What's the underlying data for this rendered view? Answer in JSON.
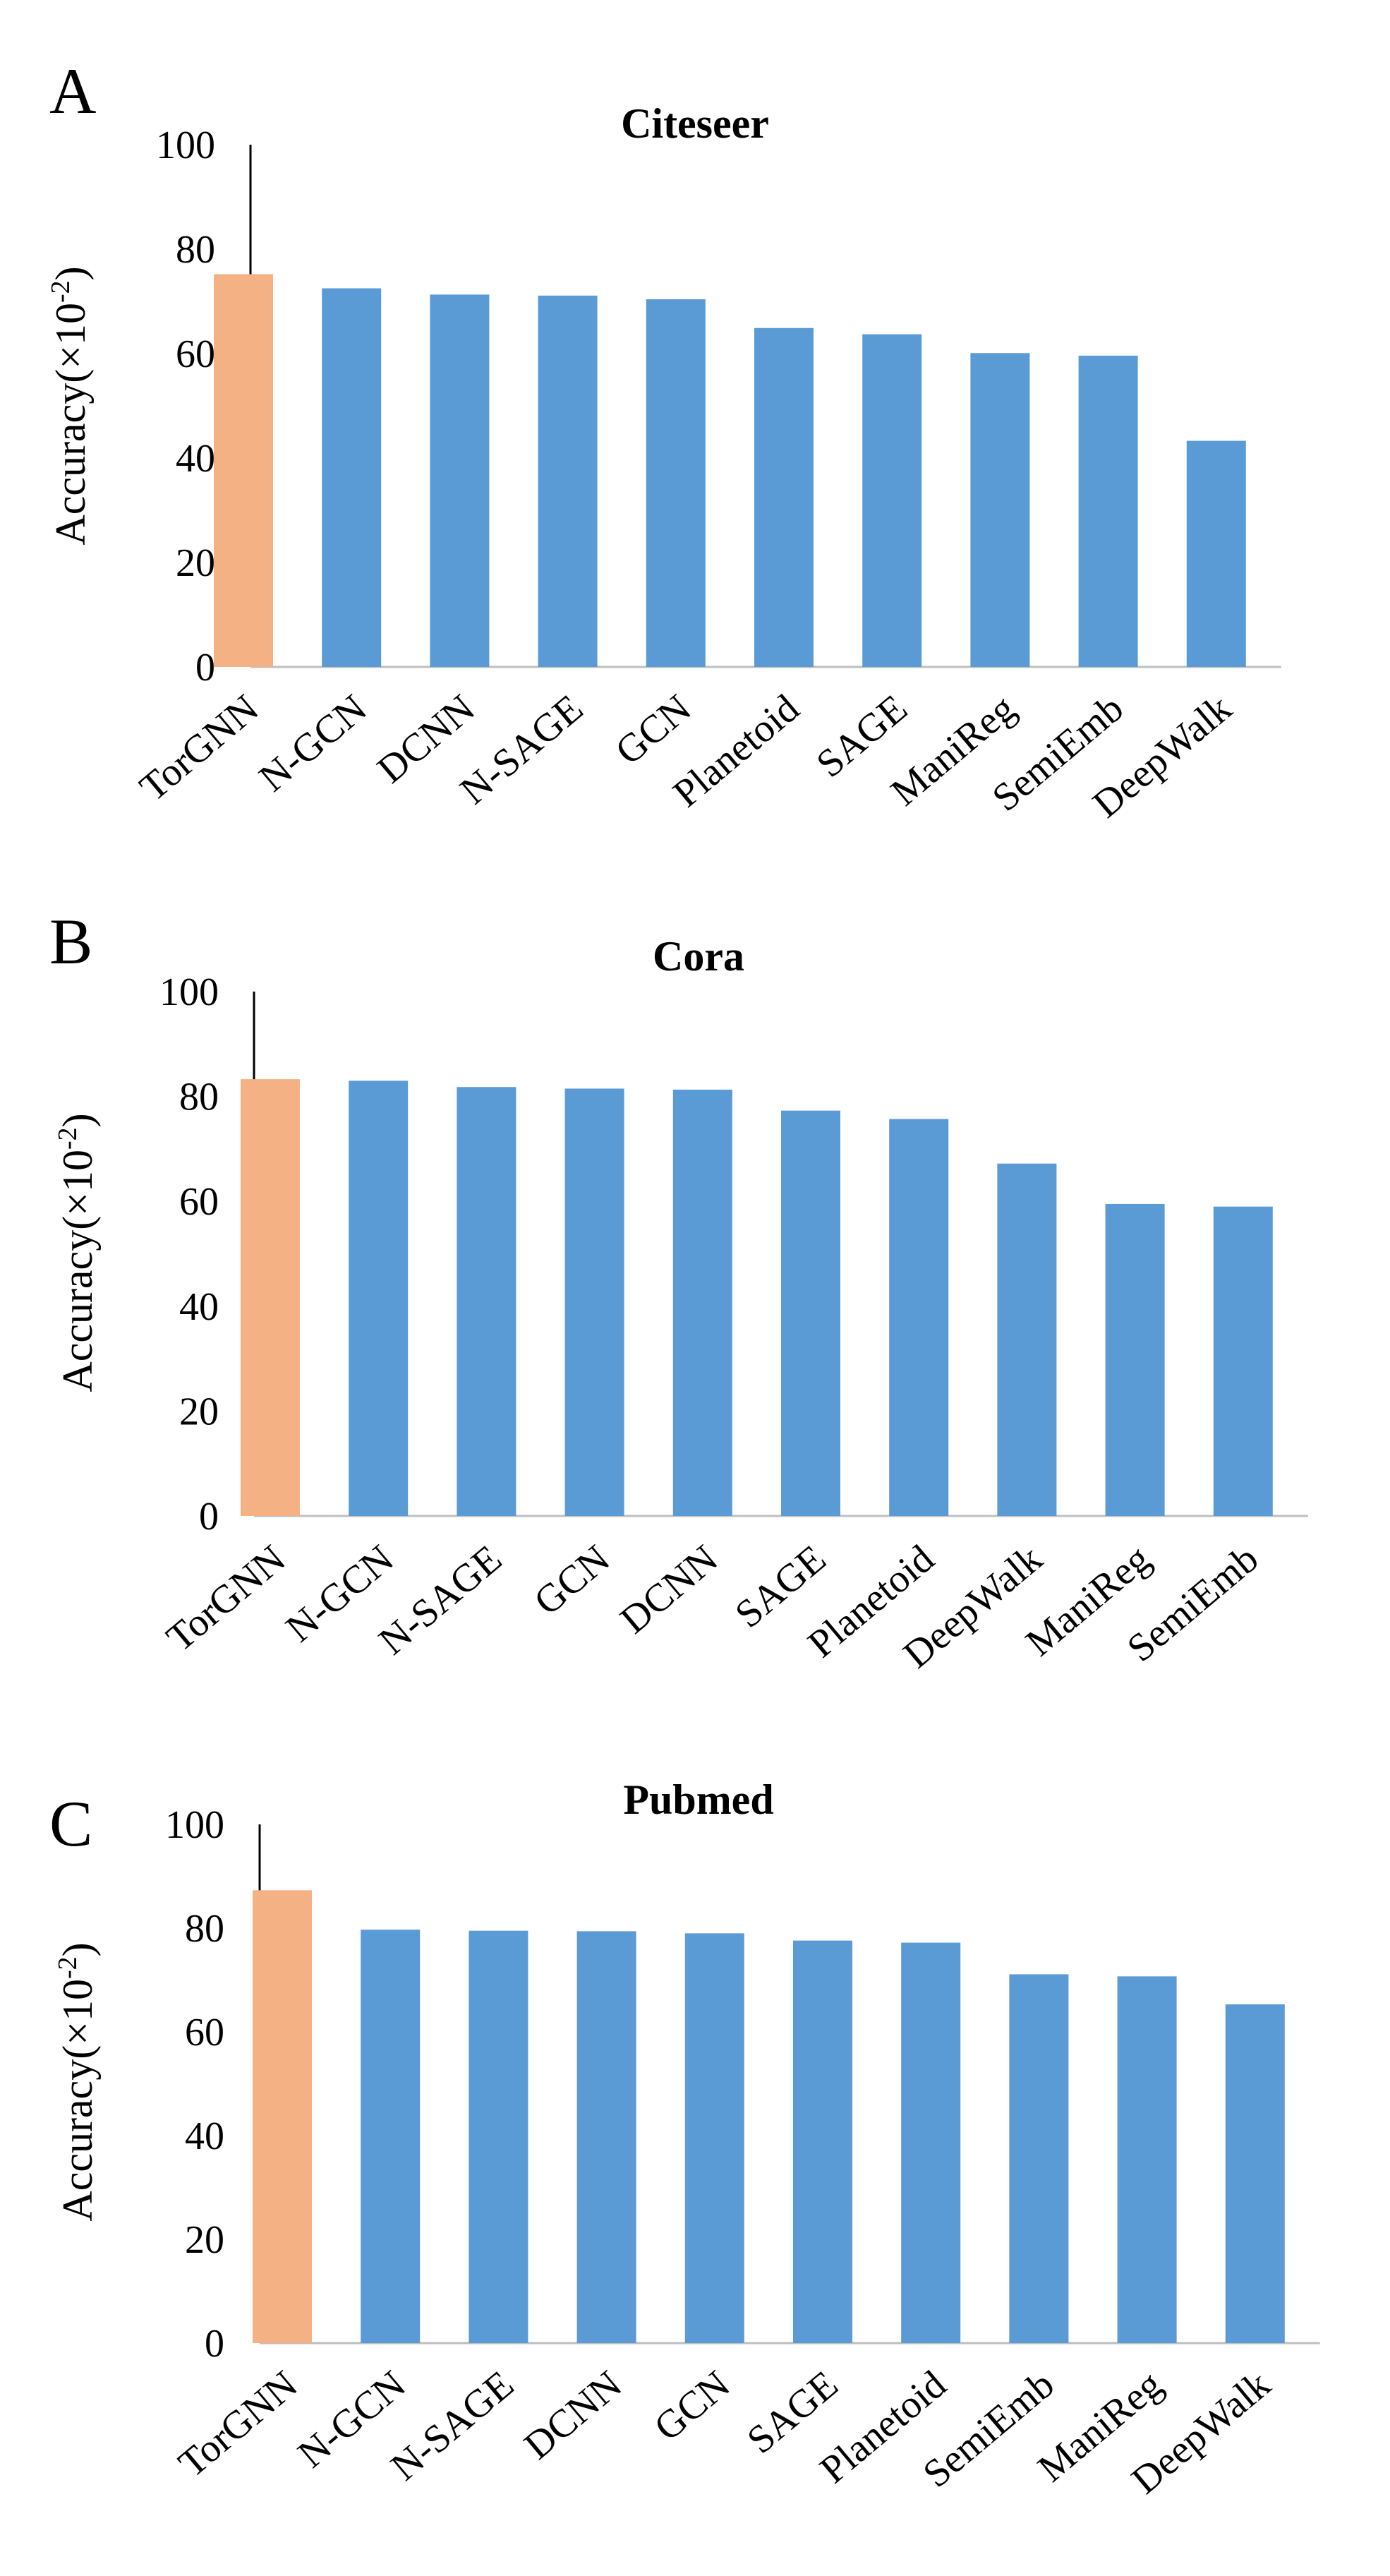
{
  "colors": {
    "highlight": "#F4B183",
    "bar": "#5B9BD5",
    "axis": "#000000",
    "baseline": "#BFBFBF"
  },
  "chart_data": [
    {
      "type": "bar",
      "panel": "A",
      "title": "Citeseer",
      "ylabel": "Accuracy(×10",
      "ylabel_exp": "-2",
      "ylabel_end": ")",
      "ylim": [
        0,
        100
      ],
      "yticks": [
        "0",
        "20",
        "40",
        "60",
        "80",
        "100"
      ],
      "categories": [
        "TorGNN",
        "N-GCN",
        "DCNN",
        "N-SAGE",
        "GCN",
        "Planetoid",
        "SAGE",
        "ManiReg",
        "SemiEmb",
        "DeepWalk"
      ],
      "values": [
        75.2,
        72.5,
        71.3,
        71.1,
        70.4,
        64.9,
        63.7,
        60.1,
        59.6,
        43.3
      ],
      "highlight": "TorGNN"
    },
    {
      "type": "bar",
      "panel": "B",
      "title": "Cora",
      "ylabel": "Accuracy(×10",
      "ylabel_exp": "-2",
      "ylabel_end": ")",
      "ylim": [
        0,
        100
      ],
      "yticks": [
        "0",
        "20",
        "40",
        "60",
        "80",
        "100"
      ],
      "categories": [
        "TorGNN",
        "N-GCN",
        "N-SAGE",
        "GCN",
        "DCNN",
        "SAGE",
        "Planetoid",
        "DeepWalk",
        "ManiReg",
        "SemiEmb"
      ],
      "values": [
        83.3,
        83.0,
        81.8,
        81.5,
        81.3,
        77.3,
        75.7,
        67.2,
        59.5,
        59.0
      ],
      "highlight": "TorGNN"
    },
    {
      "type": "bar",
      "panel": "C",
      "title": "Pubmed",
      "ylabel": "Accuracy(×10",
      "ylabel_exp": "-2",
      "ylabel_end": ")",
      "ylim": [
        0,
        100
      ],
      "yticks": [
        "0",
        "20",
        "40",
        "60",
        "80",
        "100"
      ],
      "categories": [
        "TorGNN",
        "N-GCN",
        "N-SAGE",
        "DCNN",
        "GCN",
        "SAGE",
        "Planetoid",
        "SemiEmb",
        "ManiReg",
        "DeepWalk"
      ],
      "values": [
        87.3,
        79.7,
        79.5,
        79.4,
        79.0,
        77.6,
        77.2,
        71.1,
        70.7,
        65.3
      ],
      "highlight": "TorGNN"
    }
  ]
}
